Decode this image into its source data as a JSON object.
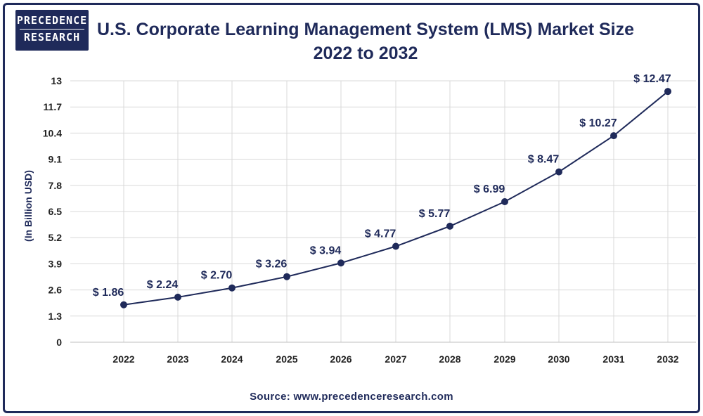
{
  "brand": {
    "line1": "PRECEDENCE",
    "line2": "RESEARCH"
  },
  "title_line1": "U.S. Corporate Learning Management System (LMS) Market  Size",
  "title_line2": "2022 to 2032",
  "source": "Source: www.precedenceresearch.com",
  "colors": {
    "primary": "#1f2a5a",
    "grid": "#d9d9d9"
  },
  "chart_data": {
    "type": "line",
    "title": "U.S. Corporate Learning Management System (LMS) Market  Size",
    "subtitle": "2022 to 2032",
    "xlabel": "",
    "ylabel": "(In Billion USD)",
    "ylim": [
      0,
      13
    ],
    "yticks": [
      "0",
      "1.3",
      "2.6",
      "3.9",
      "5.2",
      "6.5",
      "7.8",
      "9.1",
      "10.4",
      "11.7",
      "13"
    ],
    "grid": true,
    "categories": [
      "2022",
      "2023",
      "2024",
      "2025",
      "2026",
      "2027",
      "2028",
      "2029",
      "2030",
      "2031",
      "2032"
    ],
    "series": [
      {
        "values": [
          1.86,
          2.24,
          2.7,
          3.26,
          3.94,
          4.77,
          5.77,
          6.99,
          8.47,
          10.27,
          12.47
        ],
        "labels": [
          "$ 1.86",
          "$ 2.24",
          "$ 2.70",
          "$ 3.26",
          "$ 3.94",
          "$ 4.77",
          "$ 5.77",
          "$ 6.99",
          "$ 8.47",
          "$ 10.27",
          "$ 12.47"
        ]
      }
    ]
  }
}
